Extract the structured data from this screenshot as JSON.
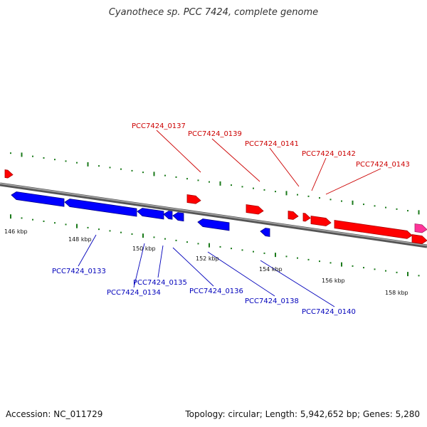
{
  "title": "Cyanothece sp. PCC 7424, complete genome",
  "footer": {
    "accession": "Accession: NC_011729",
    "summary": "Topology: circular; Length: 5,942,652 bp; Genes: 5,280"
  },
  "colors": {
    "forward_gene": "#ff0000",
    "reverse_gene": "#0000ff",
    "rna_gene": "#ff3399",
    "backbone": "#888888",
    "tick": "#1a7a1a",
    "forward_label": "#cc0000",
    "reverse_label": "#0000bb"
  },
  "kbp_labels": [
    "146 kbp",
    "148 kbp",
    "150 kbp",
    "152 kbp",
    "154 kbp",
    "156 kbp",
    "158 kbp"
  ],
  "forward_labels": [
    "PCC7424_0137",
    "PCC7424_0139",
    "PCC7424_0141",
    "PCC7424_0142",
    "PCC7424_0143"
  ],
  "reverse_labels": [
    "PCC7424_0133",
    "PCC7424_0134",
    "PCC7424_0135",
    "PCC7424_0136",
    "PCC7424_0138",
    "PCC7424_0140"
  ]
}
